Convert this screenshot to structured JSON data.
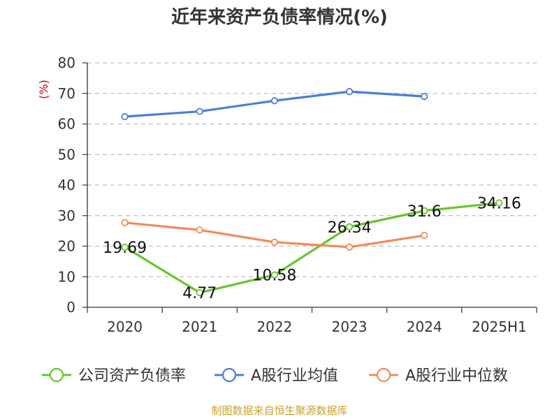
{
  "chart_data": {
    "type": "line",
    "title": "近年来资产负债率情况(%)",
    "ylabel": "(%)",
    "xlabel": "",
    "categories": [
      "2020",
      "2021",
      "2022",
      "2023",
      "2024",
      "2025H1"
    ],
    "ylim": [
      0,
      80
    ],
    "yticks": [
      0,
      10,
      20,
      30,
      40,
      50,
      60,
      70,
      80
    ],
    "grid": true,
    "legend_position": "bottom",
    "series": [
      {
        "name": "公司资产负债率",
        "color": "#66c62e",
        "values": [
          19.69,
          4.77,
          10.58,
          26.34,
          31.6,
          34.16
        ],
        "labels": [
          "19.69",
          "4.77",
          "10.58",
          "26.34",
          "31.6",
          "34.16"
        ]
      },
      {
        "name": "A股行业均值",
        "color": "#4a7fd6",
        "values": [
          62.4,
          64.1,
          67.6,
          70.6,
          69.0,
          null
        ]
      },
      {
        "name": "A股行业中位数",
        "color": "#f4895a",
        "values": [
          27.7,
          25.3,
          21.3,
          19.7,
          23.5,
          null
        ]
      }
    ],
    "source": "制图数据来自恒生聚源数据库"
  }
}
